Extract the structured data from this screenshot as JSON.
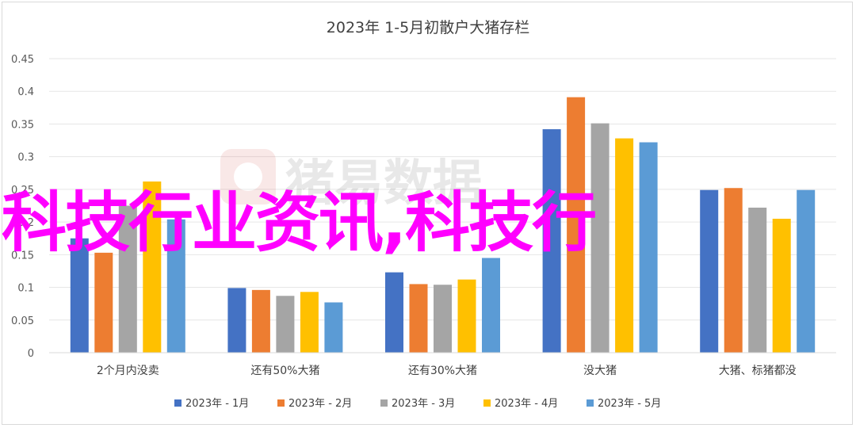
{
  "chart_data": {
    "type": "bar",
    "title": "2023年 1-5月初散户大猪存栏",
    "xlabel": "",
    "ylabel": "",
    "ylim": [
      0,
      0.45
    ],
    "yticks": [
      "0",
      "0.05",
      "0.1",
      "0.15",
      "0.2",
      "0.25",
      "0.3",
      "0.35",
      "0.4",
      "0.45"
    ],
    "categories": [
      "2个月内没卖",
      "还有50%大猪",
      "还有30%大猪",
      "没大猪",
      "大猪、标猪都没"
    ],
    "series": [
      {
        "name": "2023年 - 1月",
        "color": "#4472c4",
        "values": [
          0.175,
          0.099,
          0.123,
          0.342,
          0.249
        ]
      },
      {
        "name": "2023年 - 2月",
        "color": "#ed7d31",
        "values": [
          0.153,
          0.096,
          0.105,
          0.391,
          0.252
        ]
      },
      {
        "name": "2023年 - 3月",
        "color": "#a5a5a5",
        "values": [
          0.225,
          0.087,
          0.104,
          0.351,
          0.222
        ]
      },
      {
        "name": "2023年 - 4月",
        "color": "#ffc000",
        "values": [
          0.262,
          0.093,
          0.112,
          0.328,
          0.205
        ]
      },
      {
        "name": "2023年 - 5月",
        "color": "#5b9bd5",
        "values": [
          0.204,
          0.077,
          0.145,
          0.322,
          0.249
        ]
      }
    ],
    "grid": true,
    "legend_position": "bottom"
  },
  "overlay_text": "科技行业资讯,科技行",
  "watermark_text": "猪易数据"
}
